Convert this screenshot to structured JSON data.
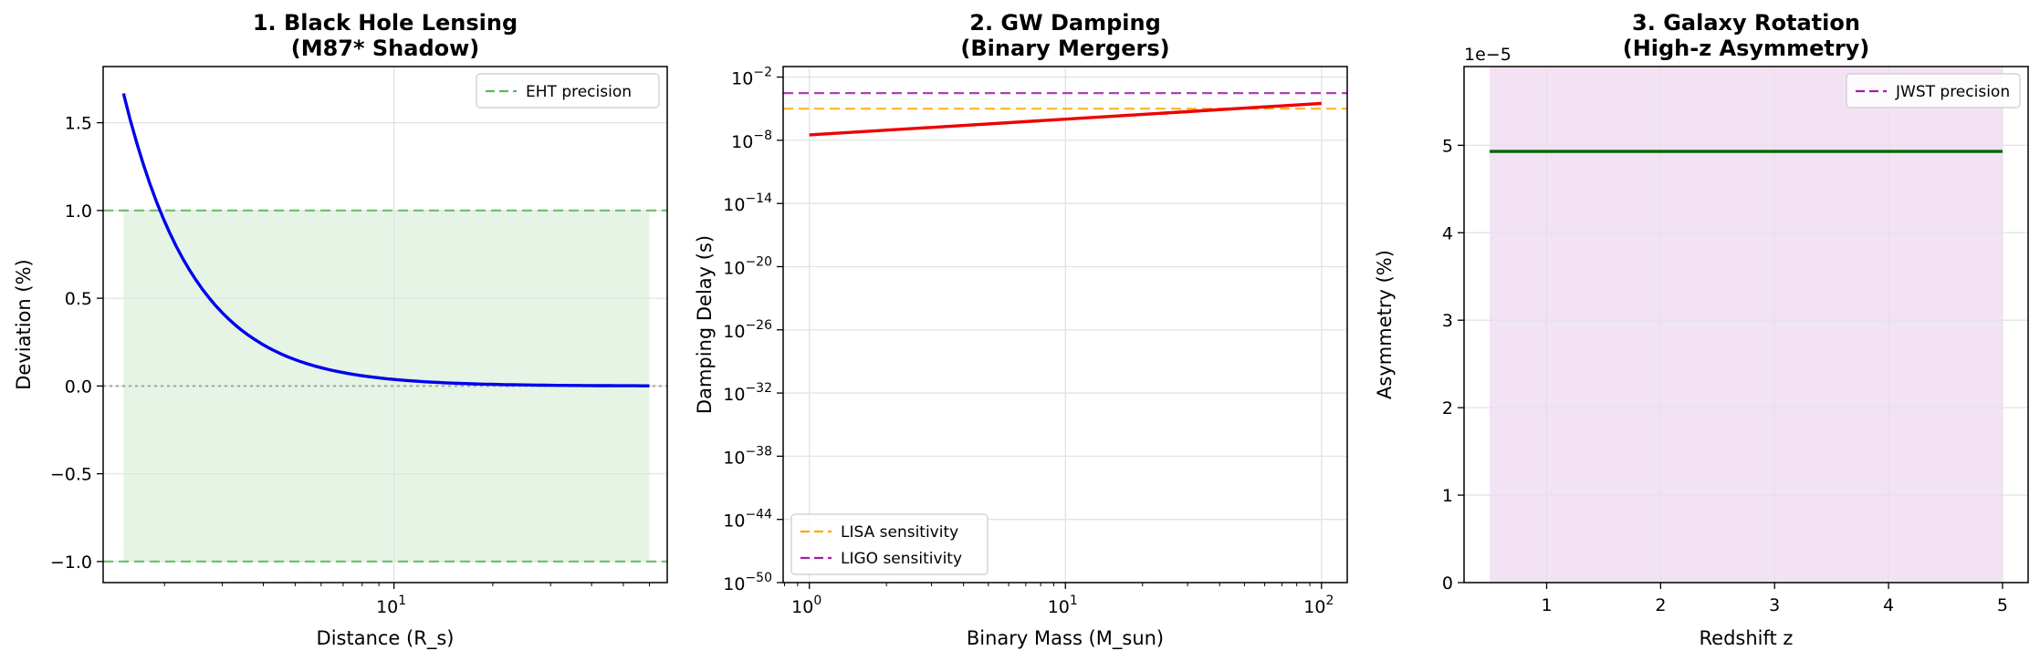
{
  "figure": {
    "background": "#ffffff",
    "grid_color": "#e3e3e3",
    "spine_color": "#000000"
  },
  "chart_data": [
    {
      "type": "line",
      "title": [
        "1. Black Hole Lensing",
        "(M87* Shadow)"
      ],
      "xlabel": "Distance (R_s)",
      "ylabel": "Deviation (%)",
      "xscale": "log",
      "xlim": [
        1.3,
        68
      ],
      "ylim": [
        -1.12,
        1.82
      ],
      "grid": true,
      "x_ticks": [
        {
          "value": 10,
          "base": "10",
          "exp": "1"
        }
      ],
      "y_ticks": [
        {
          "value": 1.5,
          "label": "1.5"
        },
        {
          "value": 1.0,
          "label": "1.0"
        },
        {
          "value": 0.5,
          "label": "0.5"
        },
        {
          "value": 0.0,
          "label": "0.0"
        },
        {
          "value": -0.5,
          "label": "−0.5"
        },
        {
          "value": -1.0,
          "label": "−1.0"
        }
      ],
      "series": [
        {
          "color": "#0000ee",
          "curve": "inverse_square",
          "coef": 3.75,
          "x_range": [
            1.5,
            60
          ],
          "samples": 80
        }
      ],
      "hlines": [
        {
          "y": 1.0,
          "color": "#5cb85c",
          "style": "dashed",
          "name": "EHT precision"
        },
        {
          "y": -1.0,
          "color": "#5cb85c",
          "style": "dashed"
        },
        {
          "y": 0.0,
          "color": "#999999",
          "style": "dotted"
        }
      ],
      "fill": {
        "x_range": [
          1.5,
          60
        ],
        "y_range": [
          -1.0,
          1.0
        ],
        "color": "#5cb85c",
        "opacity": 0.16
      },
      "legend": {
        "position": "top-right",
        "entries": [
          {
            "label": "EHT precision",
            "color": "#5cb85c"
          }
        ]
      }
    },
    {
      "type": "line",
      "title": [
        "2. GW Damping",
        "(Binary Mergers)"
      ],
      "xlabel": "Binary Mass (M_sun)",
      "ylabel": "Damping Delay (s)",
      "xscale": "log",
      "yscale": "log",
      "xlim": [
        0.79,
        126
      ],
      "ylim": [
        1e-50,
        0.1
      ],
      "grid": true,
      "x_ticks": [
        {
          "value": 1,
          "base": "10",
          "exp": "0"
        },
        {
          "value": 10,
          "base": "10",
          "exp": "1"
        },
        {
          "value": 100,
          "base": "10",
          "exp": "2"
        }
      ],
      "y_ticks": [
        {
          "value": 0.01,
          "base": "10",
          "exp": "−2"
        },
        {
          "value": 1e-08,
          "base": "10",
          "exp": "−8"
        },
        {
          "value": 1e-14,
          "base": "10",
          "exp": "−14"
        },
        {
          "value": 1e-20,
          "base": "10",
          "exp": "−20"
        },
        {
          "value": 1e-26,
          "base": "10",
          "exp": "−26"
        },
        {
          "value": 1e-32,
          "base": "10",
          "exp": "−32"
        },
        {
          "value": 1e-38,
          "base": "10",
          "exp": "−38"
        },
        {
          "value": 1e-44,
          "base": "10",
          "exp": "−44"
        },
        {
          "value": 1e-50,
          "base": "10",
          "exp": "−50"
        }
      ],
      "series": [
        {
          "color": "#ee0000",
          "points": [
            [
              1,
              3.2e-08
            ],
            [
              100,
              3.2e-05
            ]
          ]
        }
      ],
      "hlines": [
        {
          "y": 1e-05,
          "color": "#ffa500",
          "style": "dashed",
          "name": "LISA sensitivity"
        },
        {
          "y": 0.0003,
          "color": "#a020a0",
          "style": "dashed",
          "name": "LIGO sensitivity"
        }
      ],
      "legend": {
        "position": "bottom-left",
        "entries": [
          {
            "label": "LISA sensitivity",
            "color": "#ffa500"
          },
          {
            "label": "LIGO sensitivity",
            "color": "#a020a0"
          }
        ]
      }
    },
    {
      "type": "line",
      "title": [
        "3. Galaxy Rotation",
        "(High-z Asymmetry)"
      ],
      "xlabel": "Redshift z",
      "ylabel": "Asymmetry (%)",
      "offset_label": "1e−5",
      "xlim": [
        0.275,
        5.225
      ],
      "ylim": [
        0,
        5.9
      ],
      "grid": true,
      "x_ticks": [
        {
          "value": 1,
          "label": "1"
        },
        {
          "value": 2,
          "label": "2"
        },
        {
          "value": 3,
          "label": "3"
        },
        {
          "value": 4,
          "label": "4"
        },
        {
          "value": 5,
          "label": "5"
        }
      ],
      "y_ticks": [
        {
          "value": 0,
          "label": "0"
        },
        {
          "value": 1,
          "label": "1"
        },
        {
          "value": 2,
          "label": "2"
        },
        {
          "value": 3,
          "label": "3"
        },
        {
          "value": 4,
          "label": "4"
        },
        {
          "value": 5,
          "label": "5"
        }
      ],
      "series": [
        {
          "color": "#006400",
          "points": [
            [
              0.5,
              4.93
            ],
            [
              5,
              4.93
            ]
          ]
        }
      ],
      "hlines": [],
      "fill": {
        "x_range": [
          0.5,
          5
        ],
        "y_range": [
          0,
          5.9
        ],
        "color": "#a020a0",
        "opacity": 0.13
      },
      "legend": {
        "position": "top-right",
        "entries": [
          {
            "label": "JWST precision",
            "color": "#a020a0"
          }
        ]
      }
    }
  ]
}
